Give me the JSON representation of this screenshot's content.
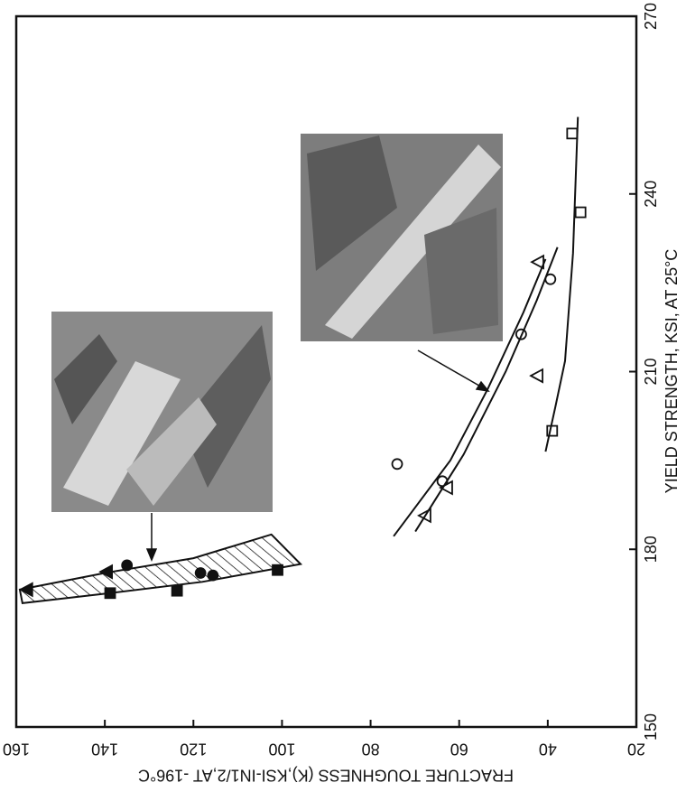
{
  "chart_data": {
    "type": "scatter",
    "xlabel": "YIELD STRENGTH, KSI, AT 25°C",
    "ylabel": "FRACTURE TOUGHNESS (K),KSI-IN1/2,AT -196°C",
    "xlim": [
      150,
      270
    ],
    "xticks": [
      150,
      180,
      210,
      240,
      270
    ],
    "ylim": [
      20,
      160
    ],
    "yticks": [
      20,
      40,
      60,
      80,
      100,
      120,
      140,
      160
    ],
    "color": "#111111",
    "series": [
      {
        "marker": "square",
        "filled": true,
        "x": [
          172.6,
          173,
          176.5
        ],
        "values": [
          138.8,
          123.7,
          101
        ]
      },
      {
        "marker": "circle",
        "filled": true,
        "x": [
          177.3,
          176,
          175.6
        ],
        "values": [
          135,
          118.4,
          115.6
        ]
      },
      {
        "marker": "triangle",
        "filled": true,
        "x": [
          173.2,
          176.2
        ],
        "values": [
          157.6,
          139.6
        ]
      },
      {
        "marker": "circle",
        "filled": false,
        "x": [
          194.4,
          191.5,
          216.3,
          225.6
        ],
        "values": [
          74,
          63.8,
          46,
          39.4
        ]
      },
      {
        "marker": "triangle",
        "filled": false,
        "x": [
          185.7,
          190.4,
          209.3,
          228.5
        ],
        "values": [
          67.7,
          62.8,
          42.4,
          42.2
        ]
      },
      {
        "marker": "square",
        "filled": false,
        "x": [
          200,
          236.9,
          250.2
        ],
        "values": [
          39,
          32.6,
          34.5
        ]
      },
      {
        "marker": "none",
        "x": [
          182.2,
          195,
          207,
          220,
          229
        ],
        "values": [
          74.8,
          62,
          53.6,
          45.5,
          40.5
        ]
      },
      {
        "marker": "none",
        "x": [
          183,
          196,
          210,
          222,
          231
        ],
        "values": [
          69.9,
          59,
          49.5,
          42.5,
          37.8
        ]
      },
      {
        "marker": "none",
        "x": [
          196.5,
          204,
          211.8,
          230,
          253
        ],
        "values": [
          40.5,
          38.3,
          36.1,
          34.3,
          33.2
        ]
      }
    ],
    "band": {
      "upper": {
        "x": [
          173.2,
          176,
          178.5,
          182.5
        ],
        "values": [
          159.2,
          140,
          120,
          102.4
        ]
      },
      "lower": {
        "x": [
          170.9,
          172.6,
          174.5,
          177.5
        ],
        "values": [
          158.6,
          138.8,
          118,
          95.8
        ]
      }
    }
  }
}
